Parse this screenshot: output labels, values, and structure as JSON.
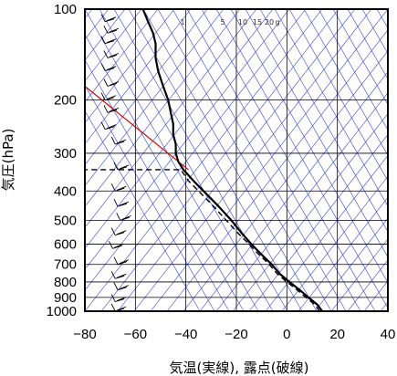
{
  "chart_data": {
    "type": "line",
    "chart_kind": "skew-T log-p sounding",
    "xlabel": "気温(実線), 露点(破線)",
    "ylabel": "気圧(hPa)",
    "xlim": [
      -80,
      40
    ],
    "ylim": [
      1000,
      100
    ],
    "y_scale": "log",
    "x_ticks": [
      "−80",
      "−60",
      "−40",
      "−20",
      "0",
      "20",
      "40"
    ],
    "x_tick_values": [
      -80,
      -60,
      -40,
      -20,
      0,
      20,
      40
    ],
    "y_ticks": [
      "100",
      "200",
      "300",
      "400",
      "500",
      "600",
      "700",
      "800",
      "900",
      "1000"
    ],
    "y_tick_values": [
      100,
      200,
      300,
      400,
      500,
      600,
      700,
      800,
      900,
      1000
    ],
    "grid": true,
    "mixing_ratio_labels": [
      "1",
      "5",
      "10",
      "15",
      "20",
      "g"
    ],
    "mixing_ratio_values": [
      1,
      5,
      10,
      15,
      20
    ],
    "colors": {
      "temperature": "#000000",
      "dewpoint": "#000000",
      "dry_adiabat": "#3344dd",
      "isotherm": "#3344dd",
      "reference_line": "#dd0000",
      "grid": "#000000",
      "wind_barb": "#000000"
    },
    "series": [
      {
        "style": "solid",
        "points": [
          {
            "p": 1000,
            "t": 14
          },
          {
            "p": 950,
            "t": 12
          },
          {
            "p": 900,
            "t": 8.5
          },
          {
            "p": 850,
            "t": 5
          },
          {
            "p": 800,
            "t": 1
          },
          {
            "p": 750,
            "t": -3
          },
          {
            "p": 700,
            "t": -6
          },
          {
            "p": 650,
            "t": -10
          },
          {
            "p": 600,
            "t": -14
          },
          {
            "p": 550,
            "t": -18
          },
          {
            "p": 500,
            "t": -22
          },
          {
            "p": 450,
            "t": -27
          },
          {
            "p": 400,
            "t": -33
          },
          {
            "p": 370,
            "t": -37
          },
          {
            "p": 340,
            "t": -41
          },
          {
            "p": 320,
            "t": -43
          },
          {
            "p": 300,
            "t": -44
          },
          {
            "p": 280,
            "t": -44
          },
          {
            "p": 260,
            "t": -45
          },
          {
            "p": 240,
            "t": -45
          },
          {
            "p": 220,
            "t": -46
          },
          {
            "p": 200,
            "t": -47
          },
          {
            "p": 180,
            "t": -49
          },
          {
            "p": 160,
            "t": -51
          },
          {
            "p": 145,
            "t": -52
          },
          {
            "p": 130,
            "t": -52
          },
          {
            "p": 120,
            "t": -53
          },
          {
            "p": 110,
            "t": -55
          },
          {
            "p": 100,
            "t": -57
          }
        ]
      },
      {
        "style": "dashed",
        "points": [
          {
            "p": 1000,
            "t": 13
          },
          {
            "p": 950,
            "t": 11
          },
          {
            "p": 900,
            "t": 7.5
          },
          {
            "p": 850,
            "t": 4
          },
          {
            "p": 800,
            "t": 0
          },
          {
            "p": 750,
            "t": -4
          },
          {
            "p": 700,
            "t": -7
          },
          {
            "p": 650,
            "t": -11
          },
          {
            "p": 600,
            "t": -15
          },
          {
            "p": 550,
            "t": -19.5
          },
          {
            "p": 500,
            "t": -24
          },
          {
            "p": 450,
            "t": -29
          },
          {
            "p": 400,
            "t": -35
          },
          {
            "p": 370,
            "t": -39
          },
          {
            "p": 340,
            "t": -42
          },
          {
            "p": 340,
            "t": -80
          }
        ]
      }
    ],
    "reference_line": [
      {
        "p": 180,
        "t": -80
      },
      {
        "p": 340,
        "t": -39
      }
    ],
    "wind_barbs": [
      {
        "p": 100,
        "t": -71
      },
      {
        "p": 110,
        "t": -72
      },
      {
        "p": 120,
        "t": -71
      },
      {
        "p": 130,
        "t": -72
      },
      {
        "p": 145,
        "t": -71
      },
      {
        "p": 160,
        "t": -72
      },
      {
        "p": 180,
        "t": -71
      },
      {
        "p": 200,
        "t": -72
      },
      {
        "p": 220,
        "t": -71
      },
      {
        "p": 250,
        "t": -72
      },
      {
        "p": 280,
        "t": -68
      },
      {
        "p": 340,
        "t": -67
      },
      {
        "p": 400,
        "t": -68
      },
      {
        "p": 450,
        "t": -67
      },
      {
        "p": 500,
        "t": -66
      },
      {
        "p": 560,
        "t": -68
      },
      {
        "p": 620,
        "t": -69
      },
      {
        "p": 700,
        "t": -67
      },
      {
        "p": 780,
        "t": -68
      },
      {
        "p": 850,
        "t": -67
      },
      {
        "p": 930,
        "t": -68
      },
      {
        "p": 1000,
        "t": -68
      }
    ]
  }
}
